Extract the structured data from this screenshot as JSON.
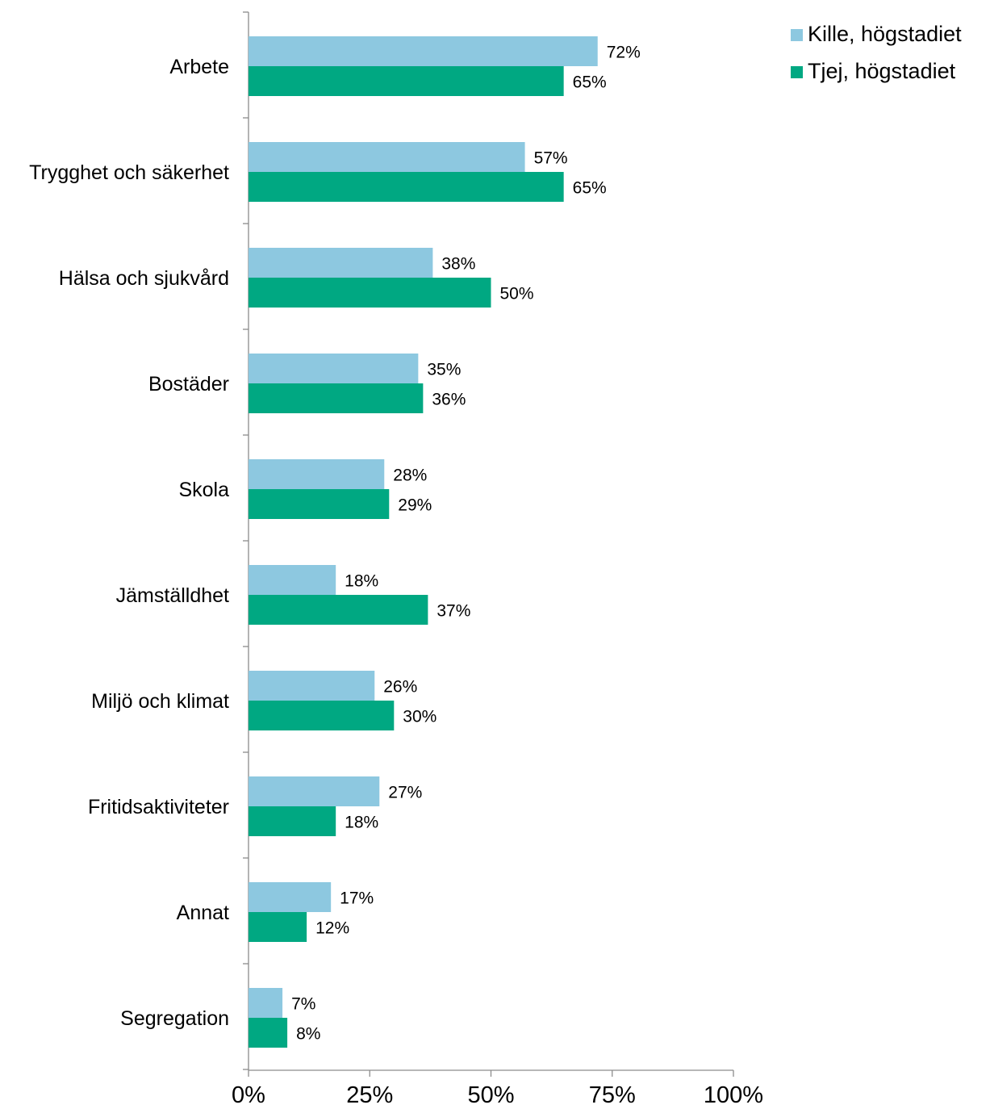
{
  "chart_data": {
    "type": "bar",
    "orientation": "horizontal",
    "categories": [
      "Arbete",
      "Trygghet och säkerhet",
      "Hälsa och sjukvård",
      "Bostäder",
      "Skola",
      "Jämställdhet",
      "Miljö och klimat",
      "Fritidsaktiviteter",
      "Annat",
      "Segregation"
    ],
    "series": [
      {
        "name": "Kille, högstadiet",
        "color": "#8DC8E0",
        "values": [
          72,
          57,
          38,
          35,
          28,
          18,
          26,
          27,
          17,
          7
        ],
        "labels": [
          "72%",
          "57%",
          "38%",
          "35%",
          "28%",
          "18%",
          "26%",
          "27%",
          "17%",
          "7%"
        ]
      },
      {
        "name": "Tjej, högstadiet",
        "color": "#00A882",
        "values": [
          65,
          65,
          50,
          36,
          29,
          37,
          30,
          18,
          12,
          8
        ],
        "labels": [
          "65%",
          "65%",
          "50%",
          "36%",
          "29%",
          "37%",
          "30%",
          "18%",
          "12%",
          "8%"
        ]
      }
    ],
    "xlim": [
      0,
      100
    ],
    "xticks": [
      0,
      25,
      50,
      75,
      100
    ],
    "xtick_labels": [
      "0%",
      "25%",
      "50%",
      "75%",
      "100%"
    ],
    "title": "",
    "xlabel": "",
    "ylabel": "",
    "grid": false,
    "legend_position": "top-right"
  }
}
